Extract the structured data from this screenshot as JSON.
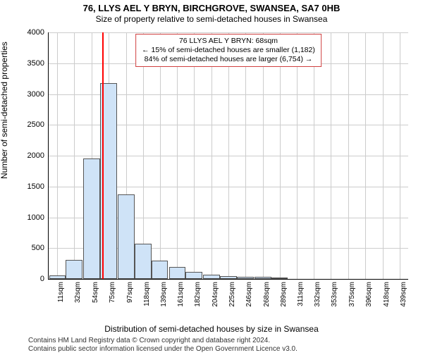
{
  "title": "76, LLYS AEL Y BRYN, BIRCHGROVE, SWANSEA, SA7 0HB",
  "subtitle": "Size of property relative to semi-detached houses in Swansea",
  "ylabel": "Number of semi-detached properties",
  "xlabel": "Distribution of semi-detached houses by size in Swansea",
  "footer_line1": "Contains HM Land Registry data © Crown copyright and database right 2024.",
  "footer_line2": "Contains public sector information licensed under the Open Government Licence v3.0.",
  "annotation": {
    "line1": "76 LLYS AEL Y BRYN: 68sqm",
    "line2": "← 15% of semi-detached houses are smaller (1,182)",
    "line3": "84% of semi-detached houses are larger (6,754) →",
    "border_color": "#d04040"
  },
  "chart": {
    "type": "histogram",
    "background_color": "#ffffff",
    "grid_color": "#cccccc",
    "bar_fill": "#cfe3f7",
    "bar_stroke": "#555555",
    "marker_color": "#ff0000",
    "marker_x": 68,
    "xlim": [
      0,
      450
    ],
    "ylim": [
      0,
      4000
    ],
    "ytick_step": 500,
    "yticks": [
      0,
      500,
      1000,
      1500,
      2000,
      2500,
      3000,
      3500,
      4000
    ],
    "xticks": [
      11,
      32,
      54,
      75,
      97,
      118,
      139,
      161,
      182,
      204,
      225,
      246,
      268,
      289,
      311,
      332,
      353,
      375,
      396,
      418,
      439
    ],
    "xtick_suffix": "sqm",
    "bar_width_data": 21,
    "bars": [
      {
        "x": 11,
        "y": 60
      },
      {
        "x": 32,
        "y": 310
      },
      {
        "x": 54,
        "y": 1950
      },
      {
        "x": 75,
        "y": 3180
      },
      {
        "x": 97,
        "y": 1370
      },
      {
        "x": 118,
        "y": 570
      },
      {
        "x": 139,
        "y": 300
      },
      {
        "x": 161,
        "y": 200
      },
      {
        "x": 182,
        "y": 110
      },
      {
        "x": 204,
        "y": 70
      },
      {
        "x": 225,
        "y": 50
      },
      {
        "x": 246,
        "y": 30
      },
      {
        "x": 268,
        "y": 40
      },
      {
        "x": 289,
        "y": 15
      }
    ],
    "title_fontsize": 13,
    "subtitle_fontsize": 12,
    "label_fontsize": 12,
    "tick_fontsize": 11
  }
}
